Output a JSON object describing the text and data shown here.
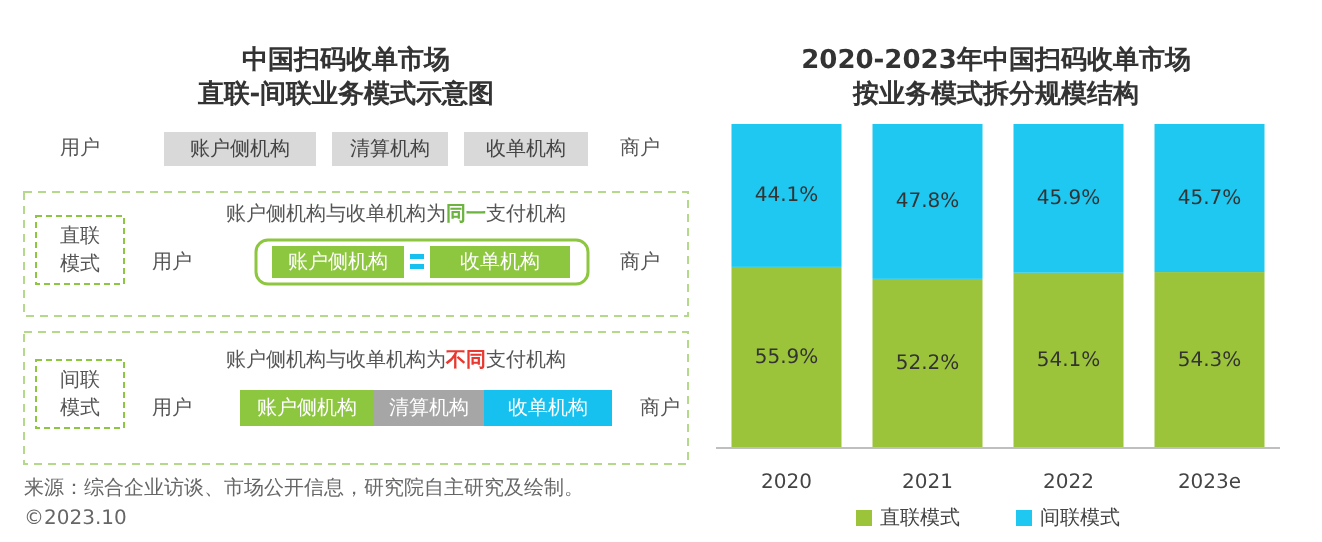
{
  "chart_data": [
    {
      "type": "other",
      "title": "中国扫码收单市场",
      "subtitle": "直联-间联业务模式示意图",
      "annotations": [
        "用户",
        "账户侧机构",
        "清算机构",
        "收单机构",
        "商户",
        "直联模式",
        "账户侧机构与收单机构为**同一**支付机构",
        "用户",
        "账户侧机构",
        "收单机构",
        "商户",
        "间联模式",
        "账户侧机构与收单机构为**不同**支付机构",
        "用户",
        "账户侧机构",
        "清算机构",
        "收单机构",
        "商户",
        "来源：综合企业访谈、市场公开信息，研究院自主研究及绘制。",
        "©2023.10"
      ]
    },
    {
      "type": "bar",
      "stacked": true,
      "title": "2020-2023年中国扫码收单市场",
      "subtitle": "按业务模式拆分规模结构",
      "categories": [
        "2020",
        "2021",
        "2022",
        "2023e"
      ],
      "legend": "bottom",
      "series": [
        {
          "name": "直联模式",
          "color": "#9cc43a",
          "values": [
            55.9,
            52.2,
            54.1,
            54.3
          ],
          "value_labels": [
            "55.9%",
            "52.2%",
            "54.1%",
            "54.3%"
          ]
        },
        {
          "name": "间联模式",
          "color": "#1ec8f0",
          "values": [
            44.1,
            47.8,
            45.9,
            45.7
          ],
          "value_labels": [
            "44.1%",
            "47.8%",
            "45.9%",
            "45.7%"
          ]
        }
      ]
    }
  ]
}
